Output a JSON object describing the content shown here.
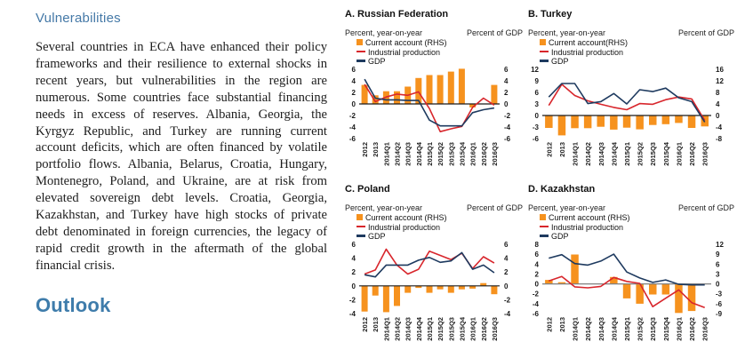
{
  "page": {
    "section_heading": "Vulnerabilities",
    "body_paragraph": "Several countries in ECA have enhanced their policy frameworks and their resilience to external shocks in recent years, but vulnerabilities in the region are numerous. Some countries face substantial financing needs in excess of reserves. Albania, Georgia, the Kyrgyz Republic, and Turkey are running current account deficits, which are often financed by volatile portfolio flows. Albania, Belarus, Croatia, Hungary, Montenegro, Poland, and Ukraine, are at risk from elevated sovereign debt levels. Croatia, Georgia, Kazakhstan, and Turkey have high stocks of private debt denominated in foreign currencies, the legacy of rapid credit growth in the aftermath of the global financial crisis.",
    "outlook_heading": "Outlook"
  },
  "chart_data": [
    {
      "id": "A",
      "type": "bar+line combo, dual axis",
      "title": "A. Russian Federation",
      "left_axis_label": "Percent, year-on-year",
      "right_axis_label": "Percent of GDP",
      "left_axis": {
        "min": -6,
        "max": 6,
        "step": 2
      },
      "right_axis": {
        "min": -6,
        "max": 6,
        "step": 2
      },
      "zero_line_color": "#1a1a1a",
      "categories": [
        "2012",
        "2013",
        "2014Q1",
        "2014Q2",
        "2014Q3",
        "2014Q4",
        "2015Q1",
        "2015Q2",
        "2015Q3",
        "2015Q4",
        "2016Q1",
        "2016Q2",
        "2016Q3"
      ],
      "series": [
        {
          "name": "Current account (RHS)",
          "type": "bar",
          "axis": "right",
          "color": "#F6921E",
          "values": [
            3.3,
            1.5,
            2.2,
            2.2,
            3.0,
            4.5,
            5.0,
            5.0,
            5.6,
            6.1,
            -0.6,
            0,
            3.3
          ]
        },
        {
          "name": "Industrial production",
          "type": "line",
          "axis": "left",
          "color": "#D8262C",
          "values": [
            3.4,
            0.4,
            1.2,
            1.7,
            1.5,
            2.1,
            -0.8,
            -4.8,
            -4.3,
            -3.9,
            -0.6,
            1.0,
            -0.2
          ]
        },
        {
          "name": "GDP",
          "type": "line",
          "axis": "left",
          "color": "#1E3A5F",
          "values": [
            4.3,
            1.0,
            0.7,
            0.7,
            0.6,
            0.6,
            -2.8,
            -3.8,
            -3.8,
            -3.8,
            -1.5,
            -1.0,
            -0.7
          ]
        }
      ]
    },
    {
      "id": "B",
      "type": "bar+line combo, dual axis",
      "title": "B. Turkey",
      "left_axis_label": "Percent, year-on-year",
      "right_axis_label": "Percent of GDP",
      "left_axis": {
        "min": -6,
        "max": 12,
        "step": 3
      },
      "right_axis": {
        "min": -8,
        "max": 16,
        "step": 4
      },
      "zero_line_color": "#1a1a1a",
      "categories": [
        "2012",
        "2013",
        "2014Q1",
        "2014Q2",
        "2014Q3",
        "2014Q4",
        "2015Q1",
        "2015Q2",
        "2015Q3",
        "2015Q4",
        "2016Q1",
        "2016Q2",
        "2016Q3"
      ],
      "series": [
        {
          "name": "Current account(RHS)",
          "type": "bar",
          "axis": "right",
          "color": "#F6921E",
          "values": [
            -4.3,
            -6.9,
            -4.4,
            -4.4,
            -3.9,
            -4.9,
            -4.2,
            -4.8,
            -3.3,
            -3.0,
            -2.6,
            -4.3,
            -3.8
          ]
        },
        {
          "name": "Industrial production",
          "type": "line",
          "axis": "left",
          "color": "#D8262C",
          "values": [
            2.6,
            8.1,
            5.2,
            3.8,
            2.9,
            2.1,
            1.5,
            3.1,
            2.9,
            4.1,
            4.8,
            4.3,
            -1.3
          ]
        },
        {
          "name": "GDP",
          "type": "line",
          "axis": "left",
          "color": "#1E3A5F",
          "values": [
            4.8,
            8.3,
            8.3,
            3.1,
            3.6,
            5.7,
            3.0,
            6.7,
            6.2,
            7.1,
            4.6,
            3.6,
            -1.7
          ]
        }
      ]
    },
    {
      "id": "C",
      "type": "bar+line combo, dual axis",
      "title": "C. Poland",
      "left_axis_label": "Percent, year-on-year",
      "right_axis_label": "Percent of GDP",
      "left_axis": {
        "min": -4,
        "max": 6,
        "step": 2
      },
      "right_axis": {
        "min": -4,
        "max": 6,
        "step": 2
      },
      "zero_line_color": "#1a1a1a",
      "categories": [
        "2012",
        "2013",
        "2014Q1",
        "2014Q2",
        "2014Q3",
        "2014Q4",
        "2015Q1",
        "2015Q2",
        "2015Q3",
        "2015Q4",
        "2016Q1",
        "2016Q2",
        "2016Q3"
      ],
      "series": [
        {
          "name": "Current account (RHS)",
          "type": "bar",
          "axis": "right",
          "color": "#F6921E",
          "values": [
            -3.7,
            -1.4,
            -3.8,
            -2.9,
            -1.0,
            -0.3,
            -1.0,
            -0.5,
            -1.0,
            -0.5,
            -0.4,
            0.4,
            -1.2
          ]
        },
        {
          "name": "Industrial production",
          "type": "line",
          "axis": "left",
          "color": "#D8262C",
          "values": [
            1.7,
            2.3,
            5.3,
            3.0,
            1.7,
            2.4,
            5.0,
            4.4,
            3.8,
            4.7,
            2.5,
            4.2,
            3.3
          ]
        },
        {
          "name": "GDP",
          "type": "line",
          "axis": "left",
          "color": "#1E3A5F",
          "values": [
            1.6,
            1.3,
            3.0,
            3.0,
            3.0,
            3.7,
            4.1,
            3.4,
            3.6,
            4.8,
            2.4,
            3.0,
            1.9
          ]
        }
      ]
    },
    {
      "id": "D",
      "type": "bar+line combo, dual axis",
      "title": "D. Kazakhstan",
      "left_axis_label": "Percent, year-on-year",
      "right_axis_label": "Percent of GDP",
      "left_axis": {
        "min": -6,
        "max": 8,
        "step": 2
      },
      "right_axis": {
        "min": -9,
        "max": 12,
        "step": 3
      },
      "zero_line_color": "#808080",
      "categories": [
        "2012",
        "2013",
        "2014Q1",
        "2014Q2",
        "2014Q3",
        "2014Q4",
        "2015Q1",
        "2015Q2",
        "2015Q3",
        "2015Q4",
        "2016Q1",
        "2016Q2",
        "2016Q3"
      ],
      "series": [
        {
          "name": "Current account (RHS)",
          "type": "bar",
          "axis": "right",
          "color": "#F6921E",
          "values": [
            1.2,
            0.5,
            8.9,
            0,
            0,
            2.1,
            -4.4,
            -6.0,
            -3.2,
            -3.2,
            -8.8,
            -8.2,
            0
          ]
        },
        {
          "name": "Industrial production",
          "type": "line",
          "axis": "left",
          "color": "#D8262C",
          "values": [
            0.6,
            1.5,
            -0.6,
            -0.8,
            -0.5,
            1.3,
            0.5,
            0.1,
            -4.6,
            -2.9,
            -1.2,
            -3.8,
            -4.8
          ]
        },
        {
          "name": "GDP",
          "type": "line",
          "axis": "left",
          "color": "#1E3A5F",
          "values": [
            5.2,
            5.9,
            4.1,
            3.8,
            4.6,
            6.0,
            2.4,
            1.2,
            0.3,
            0.8,
            -0.1,
            -0.2,
            -0.2
          ]
        }
      ]
    }
  ]
}
